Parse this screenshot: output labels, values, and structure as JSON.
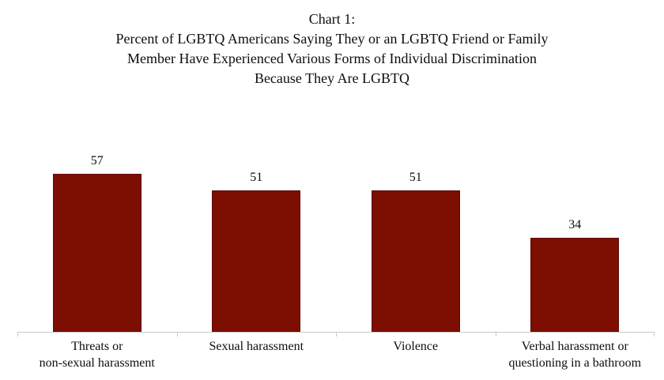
{
  "chart_data": {
    "type": "bar",
    "title": "Chart 1:\nPercent of LGBTQ Americans Saying They or an LGBTQ Friend or Family\nMember Have Experienced Various Forms of Individual Discrimination\nBecause They Are LGBTQ",
    "categories": [
      "Threats or\nnon-sexual harassment",
      "Sexual harassment",
      "Violence",
      "Verbal harassment or\nquestioning in a bathroom"
    ],
    "values": [
      57,
      51,
      51,
      34
    ],
    "value_labels": [
      "57",
      "51",
      "51",
      "34"
    ],
    "xlabel": "",
    "ylabel": "",
    "ylim": [
      0,
      60
    ],
    "grid": false,
    "legend_position": "none",
    "data_labels_shown": true,
    "bar_fill_color": "#7d0e02",
    "bar_border_color": "#5e0b00",
    "axis_line_color": "#c9c9c9",
    "text_color": "#0d0d0d",
    "background_color": "#ffffff"
  }
}
